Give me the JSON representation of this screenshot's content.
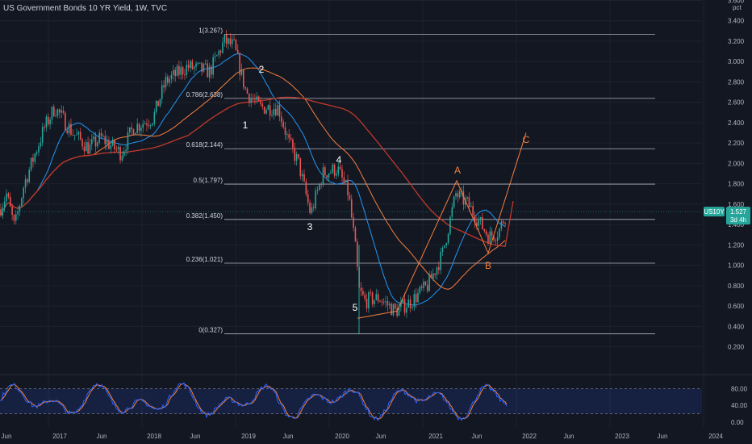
{
  "header": {
    "title": "US Government Bonds 10 YR Yield, 1W, TVC"
  },
  "colors": {
    "background": "#131722",
    "grid": "#1e222d",
    "candle_up": "#26a69a",
    "candle_down": "#ef5350",
    "ma_fast": "#2196f3",
    "ma_mid": "#f57f3c",
    "ma_slow": "#c0392b",
    "wave_lines": "#f57f3c",
    "stoch_k": "#2962ff",
    "stoch_d": "#f57f3c",
    "fib_lines": "#b2b5be"
  },
  "price_badge": {
    "symbol": "US10Y",
    "value": "1.527",
    "countdown": "3d 4h"
  },
  "chart_data": [
    {
      "type": "line",
      "title": "US Government Bonds 10 YR Yield, 1W, TVC",
      "unit_label": "pct",
      "ylim": [
        0.1,
        3.6
      ],
      "y_ticks": [
        "3.600",
        "3.400",
        "3.200",
        "3.000",
        "2.800",
        "2.600",
        "2.400",
        "2.200",
        "2.000",
        "1.800",
        "1.600",
        "1.400",
        "1.200",
        "1.000",
        "0.800",
        "0.600",
        "0.400",
        "0.200"
      ],
      "x_ticks": [
        "Jun",
        "2017",
        "Jun",
        "2018",
        "Jun",
        "2019",
        "Jun",
        "2020",
        "Jun",
        "2021",
        "Jun",
        "2022",
        "Jun",
        "2023",
        "Jun",
        "2024"
      ],
      "series": [
        {
          "style": "candles",
          "x": [
            "2016-05",
            "2016-07",
            "2016-09",
            "2016-11",
            "2017-01",
            "2017-03",
            "2017-05",
            "2017-07",
            "2017-09",
            "2017-11",
            "2018-01",
            "2018-03",
            "2018-05",
            "2018-07",
            "2018-09",
            "2018-10",
            "2018-12",
            "2019-02",
            "2019-04",
            "2019-06",
            "2019-08",
            "2019-10",
            "2019-12",
            "2020-02",
            "2020-03",
            "2020-05",
            "2020-07",
            "2020-09",
            "2020-11",
            "2021-01",
            "2021-03",
            "2021-05",
            "2021-07",
            "2021-08",
            "2021-09",
            "2021-10"
          ],
          "values": [
            1.7,
            1.45,
            1.6,
            2.25,
            2.45,
            2.55,
            2.3,
            2.3,
            2.2,
            2.4,
            2.7,
            2.85,
            2.95,
            2.9,
            3.05,
            3.2,
            2.85,
            2.7,
            2.55,
            2.05,
            1.55,
            1.75,
            1.9,
            1.55,
            0.7,
            0.65,
            0.55,
            0.68,
            0.85,
            1.1,
            1.7,
            1.6,
            1.3,
            1.25,
            1.45,
            1.55
          ]
        }
      ],
      "fib_levels": [
        {
          "label": "1(3.267)",
          "value": 3.267
        },
        {
          "label": "0.786(2.638)",
          "value": 2.638
        },
        {
          "label": "0.618(2.144)",
          "value": 2.144
        },
        {
          "label": "0.5(1.797)",
          "value": 1.797
        },
        {
          "label": "0.382(1.450)",
          "value": 1.45
        },
        {
          "label": "0.236(1.021)",
          "value": 1.021
        },
        {
          "label": "0(0.327)",
          "value": 0.327
        }
      ],
      "annotations": [
        "1",
        "2",
        "3",
        "4",
        "5",
        "A",
        "B",
        "C"
      ]
    },
    {
      "type": "line",
      "title": "",
      "ylim": [
        0,
        100
      ],
      "y_ticks": [
        "80.00",
        "40.00",
        "0.00"
      ],
      "band": [
        20,
        80
      ],
      "series": [
        {
          "style": "k"
        },
        {
          "style": "d"
        }
      ]
    }
  ]
}
